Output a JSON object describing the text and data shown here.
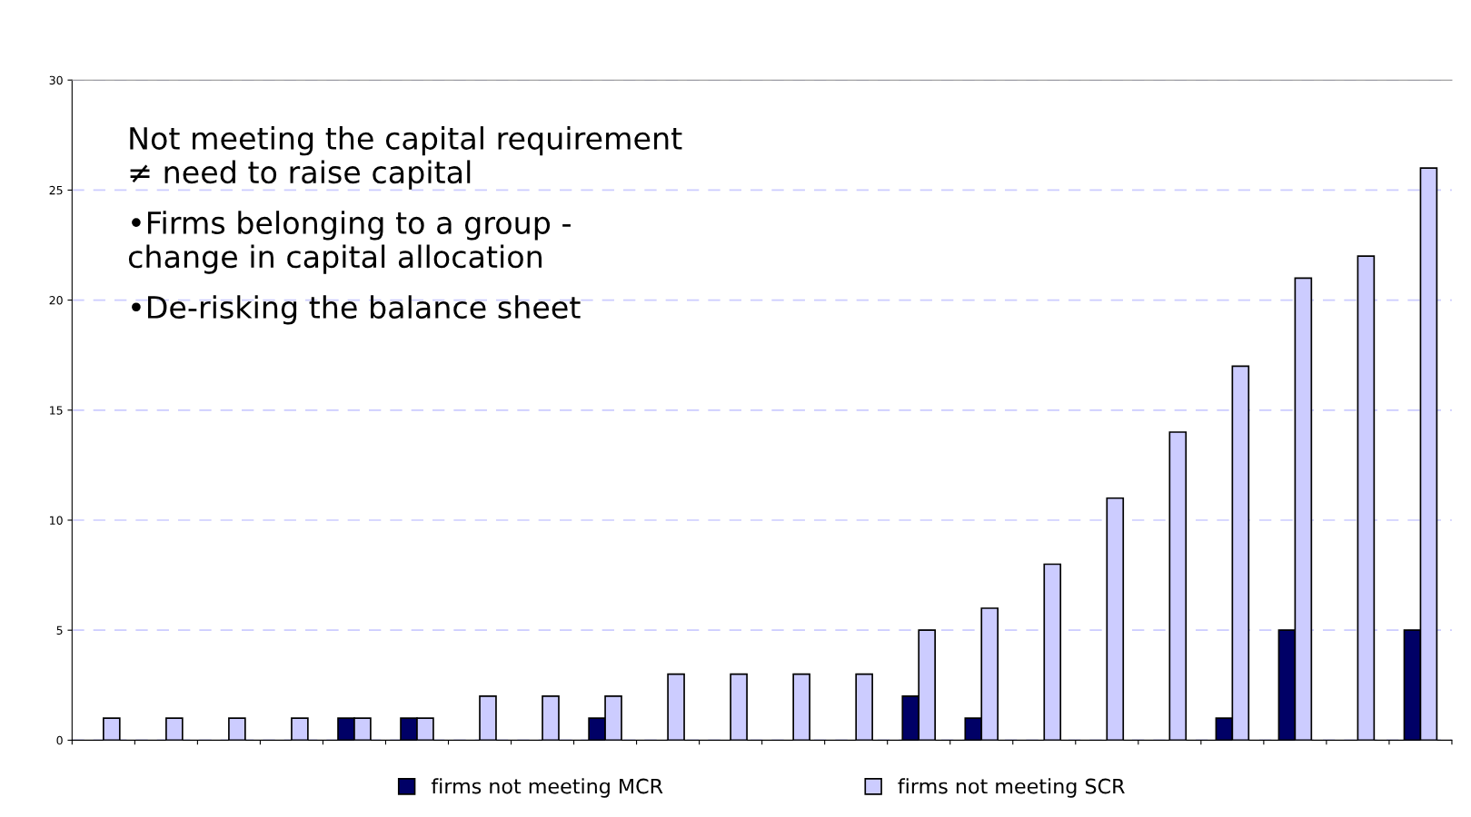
{
  "chart_data": {
    "type": "bar",
    "categories": [
      null,
      null,
      null,
      null,
      null,
      null,
      null,
      null,
      null,
      null,
      null,
      null,
      null,
      null,
      null,
      null,
      null,
      null,
      null,
      null,
      null,
      null
    ],
    "series": [
      {
        "name": "firms not meeting MCR",
        "color": "#000066",
        "values": [
          null,
          null,
          null,
          null,
          1,
          1,
          null,
          null,
          1,
          null,
          null,
          null,
          null,
          2,
          1,
          null,
          null,
          null,
          1,
          5,
          null,
          5
        ]
      },
      {
        "name": "firms not meeting SCR",
        "color": "#ccccff",
        "values": [
          1,
          1,
          1,
          1,
          1,
          1,
          2,
          2,
          2,
          3,
          3,
          3,
          3,
          5,
          6,
          8,
          11,
          14,
          17,
          21,
          22,
          26
        ]
      }
    ],
    "ylim": [
      0,
      30
    ],
    "yticks": [
      0,
      5,
      10,
      15,
      20,
      25,
      30
    ],
    "grid": "y",
    "legend": "bottom",
    "annotations": [
      "Not meeting the capital requirement\n≠ need to raise capital",
      "•Firms belonging to a group -\nchange in capital allocation",
      "•De-risking the balance sheet"
    ]
  }
}
